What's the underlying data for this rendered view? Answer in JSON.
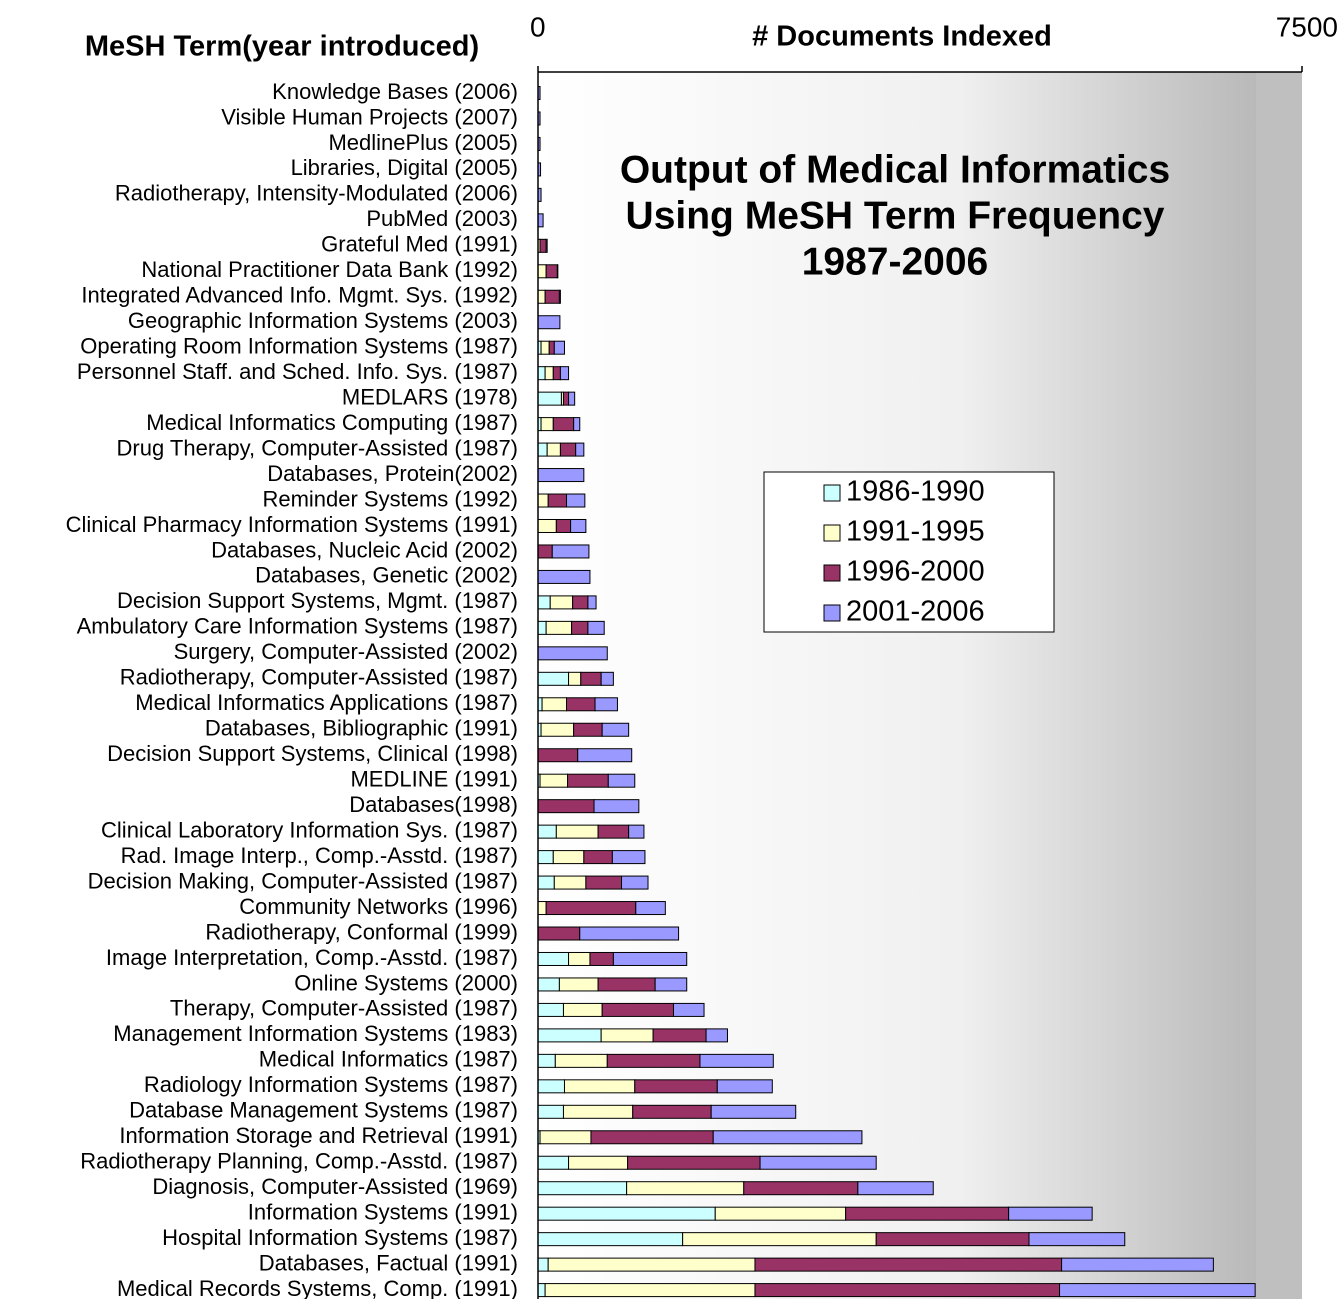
{
  "chart_data": {
    "type": "stacked-bar-horizontal",
    "title": [
      "Output of Medical Informatics",
      "Using MeSH Term Frequency",
      "1987-2006"
    ],
    "y_label": "MeSH Term(year introduced)",
    "x_label": "# Documents Indexed",
    "xlim": [
      0,
      7500
    ],
    "xticks": [
      0,
      7500
    ],
    "categories": [
      "Knowledge Bases (2006)",
      "Visible Human Projects (2007)",
      "MedlinePlus (2005)",
      "Libraries, Digital (2005)",
      "Radiotherapy, Intensity-Modulated (2006)",
      "PubMed (2003)",
      "Grateful Med  (1991)",
      "National Practitioner Data Bank (1992)",
      "Integrated Advanced Info. Mgmt. Sys. (1992)",
      "Geographic Information Systems (2003)",
      "Operating Room Information Systems (1987)",
      "Personnel Staff. and Sched. Info. Sys. (1987)",
      "MEDLARS (1978)",
      "Medical Informatics Computing (1987)",
      "Drug Therapy, Computer-Assisted (1987)",
      "Databases, Protein(2002)",
      "Reminder Systems (1992)",
      "Clinical Pharmacy Information Systems (1991)",
      "Databases, Nucleic Acid (2002)",
      "Databases, Genetic (2002)",
      "Decision Support Systems, Mgmt. (1987)",
      "Ambulatory Care Information Systems (1987)",
      "Surgery, Computer-Assisted (2002)",
      "Radiotherapy, Computer-Assisted (1987)",
      "Medical Informatics Applications (1987)",
      "Databases, Bibliographic (1991)",
      "Decision Support Systems, Clinical (1998)",
      "MEDLINE (1991)",
      "Databases(1998)",
      "Clinical Laboratory Information Sys. (1987)",
      "Rad. Image Interp., Comp.-Asstd. (1987)",
      "Decision Making, Computer-Assisted (1987)",
      "Community Networks (1996)",
      "Radiotherapy, Conformal (1999)",
      "Image Interpretation, Comp.-Asstd. (1987)",
      "Online Systems (2000)",
      "Therapy, Computer-Assisted (1987)",
      "Management Information Systems (1983)",
      "Medical Informatics (1987)",
      "Radiology Information Systems (1987)",
      "Database Management Systems (1987)",
      "Information Storage and Retrieval (1991)",
      "Radiotherapy Planning, Comp.-Asstd. (1987)",
      "Diagnosis, Computer-Assisted (1969)",
      "Information Systems (1991)",
      "Hospital Information Systems (1987)",
      "Databases, Factual (1991)",
      "Medical Records Systems, Comp. (1991)"
    ],
    "series": [
      {
        "name": "1986-1990",
        "color": "#ccffff",
        "values": [
          0,
          0,
          0,
          0,
          0,
          0,
          0,
          0,
          0,
          0,
          30,
          70,
          230,
          30,
          90,
          0,
          0,
          0,
          0,
          0,
          120,
          80,
          0,
          300,
          40,
          30,
          0,
          20,
          0,
          180,
          150,
          160,
          0,
          0,
          300,
          210,
          250,
          620,
          170,
          260,
          250,
          20,
          300,
          870,
          1740,
          1420,
          100,
          70
        ]
      },
      {
        "name": "1991-1995",
        "color": "#ffffcc",
        "values": [
          0,
          0,
          0,
          0,
          0,
          0,
          20,
          80,
          70,
          0,
          80,
          80,
          20,
          120,
          130,
          0,
          100,
          180,
          0,
          0,
          220,
          250,
          0,
          120,
          240,
          320,
          0,
          270,
          0,
          410,
          300,
          310,
          80,
          0,
          210,
          380,
          380,
          510,
          510,
          690,
          680,
          500,
          580,
          1150,
          1280,
          1900,
          2030,
          2060
        ]
      },
      {
        "name": "1996-2000",
        "color": "#993366",
        "values": [
          0,
          0,
          0,
          0,
          0,
          0,
          60,
          110,
          140,
          0,
          50,
          70,
          50,
          200,
          150,
          0,
          180,
          140,
          140,
          0,
          150,
          160,
          0,
          200,
          280,
          280,
          390,
          400,
          550,
          300,
          280,
          350,
          880,
          410,
          230,
          560,
          700,
          520,
          910,
          810,
          770,
          1200,
          1300,
          1120,
          1600,
          1500,
          3010,
          2990
        ]
      },
      {
        "name": "2001-2006",
        "color": "#9999ff",
        "values": [
          20,
          20,
          20,
          25,
          30,
          50,
          10,
          5,
          10,
          215,
          100,
          80,
          60,
          60,
          80,
          450,
          180,
          150,
          360,
          510,
          80,
          160,
          680,
          120,
          220,
          260,
          530,
          260,
          440,
          150,
          320,
          260,
          290,
          970,
          720,
          310,
          300,
          210,
          720,
          540,
          830,
          1460,
          1140,
          740,
          820,
          940,
          1490,
          1920
        ]
      }
    ]
  }
}
